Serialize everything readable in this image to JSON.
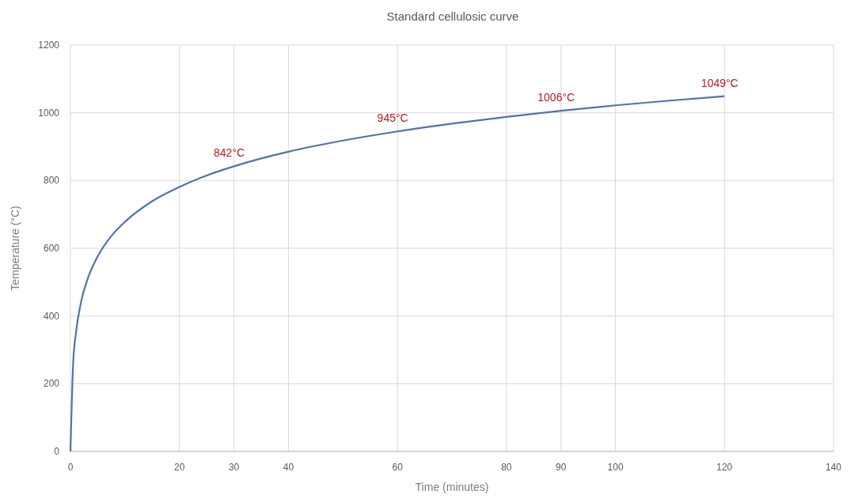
{
  "chart_data": {
    "type": "line",
    "title": "Standard cellulosic curve",
    "xlabel": "Time (minutes)",
    "ylabel": "Temperature (°C)",
    "x": [
      0,
      0.5,
      1,
      2,
      3,
      5,
      7.5,
      10,
      15,
      20,
      25,
      30,
      40,
      50,
      60,
      70,
      80,
      90,
      100,
      110,
      120
    ],
    "series": [
      {
        "color": "#4f74ad",
        "values": [
          0,
          261,
          349,
          445,
          502,
          576,
          636,
          678,
          739,
          781,
          815,
          842,
          885,
          918,
          945,
          968,
          988,
          1006,
          1022,
          1036,
          1049
        ],
        "value_labels": [
          null,
          null,
          null,
          null,
          null,
          null,
          null,
          null,
          null,
          null,
          null,
          "842°C",
          null,
          null,
          "945°C",
          null,
          null,
          "1006°C",
          null,
          null,
          "1049°C"
        ]
      }
    ],
    "xlim": [
      0,
      140
    ],
    "xticks": [
      0,
      20,
      30,
      40,
      60,
      80,
      90,
      100,
      120,
      140
    ],
    "ylim": [
      0,
      1200
    ],
    "yticks": [
      0,
      200,
      400,
      600,
      800,
      1000,
      1200
    ],
    "grid": true,
    "marker": "none",
    "line_style": "solid"
  }
}
